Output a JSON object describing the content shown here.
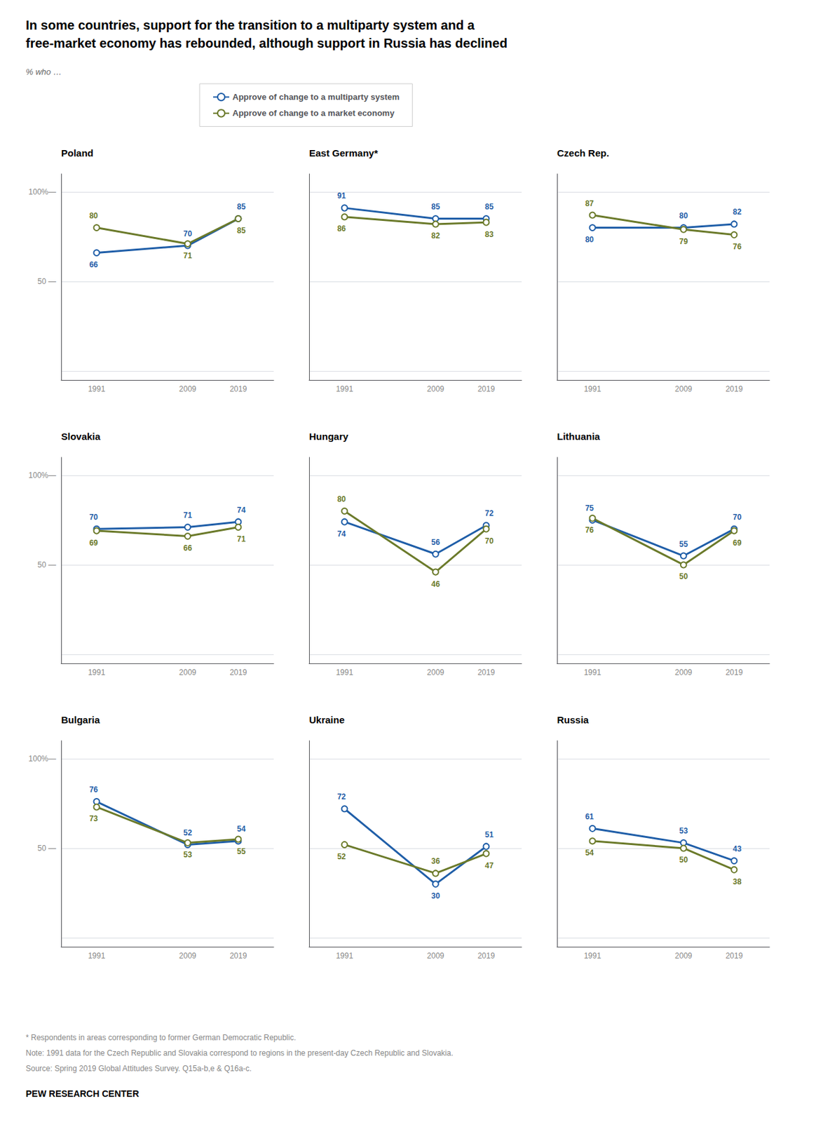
{
  "title": "In some countries, support for the transition to a multiparty system and a\nfree-market economy has rebounded, although support in Russia has declined",
  "ylabel": "% who …",
  "legend": "top",
  "annotations": [
    "* Respondents in areas corresponding to former German Democratic Republic.",
    "Note: 1991 data for the Czech Republic and Slovakia correspond to regions in the present-day Czech Republic and Slovakia.",
    "Source: Spring 2019 Global Attitudes Survey. Q15a-b,e & Q16a-c.",
    "PEW RESEARCH CENTER"
  ],
  "chart_data": [
    {
      "type": "line",
      "title": "Poland",
      "x": [
        1991,
        2009,
        2019
      ],
      "xlim": [
        1984,
        2026
      ],
      "xticks": [
        1991,
        2009,
        2019
      ],
      "ylim": [
        -5,
        110
      ],
      "yticks": [
        {
          "value": 0,
          "label": null
        },
        {
          "value": 50,
          "label": "50 —"
        },
        {
          "value": 100,
          "label": "100%—"
        }
      ],
      "grid": true,
      "data_labels": true,
      "series": [
        {
          "name": "Approve of change to a multiparty system",
          "color": "#1f5ea8",
          "values": [
            66,
            70,
            85
          ]
        },
        {
          "name": "Approve of change to a market economy",
          "color": "#6b7a2a",
          "values": [
            80,
            71,
            85
          ]
        }
      ]
    },
    {
      "type": "line",
      "title": "East Germany*",
      "x": [
        1991,
        2009,
        2019
      ],
      "xlim": [
        1984,
        2026
      ],
      "xticks": [
        1991,
        2009,
        2019
      ],
      "ylim": [
        -5,
        110
      ],
      "yticks": [
        0,
        50,
        100
      ],
      "tick_labels": "x",
      "grid": true,
      "data_labels": true,
      "series": [
        {
          "name": "Approve of change to a multiparty system",
          "color": "#1f5ea8",
          "values": [
            91,
            85,
            85
          ]
        },
        {
          "name": "Approve of change to a market economy",
          "color": "#6b7a2a",
          "values": [
            86,
            82,
            83
          ]
        }
      ]
    },
    {
      "type": "line",
      "title": "Czech Rep.",
      "x": [
        1991,
        2009,
        2019
      ],
      "xlim": [
        1984,
        2026
      ],
      "xticks": [
        1991,
        2009,
        2019
      ],
      "ylim": [
        -5,
        110
      ],
      "yticks": [
        0,
        50,
        100
      ],
      "tick_labels": "x",
      "grid": true,
      "data_labels": true,
      "series": [
        {
          "name": "Approve of change to a multiparty system",
          "color": "#1f5ea8",
          "values": [
            80,
            80,
            82
          ]
        },
        {
          "name": "Approve of change to a market economy",
          "color": "#6b7a2a",
          "values": [
            87,
            79,
            76
          ]
        }
      ]
    },
    {
      "type": "line",
      "title": "Slovakia",
      "x": [
        1991,
        2009,
        2019
      ],
      "xlim": [
        1984,
        2026
      ],
      "xticks": [
        1991,
        2009,
        2019
      ],
      "ylim": [
        -5,
        110
      ],
      "yticks": [
        {
          "value": 0,
          "label": null
        },
        {
          "value": 50,
          "label": "50 —"
        },
        {
          "value": 100,
          "label": "100%—"
        }
      ],
      "grid": true,
      "data_labels": true,
      "series": [
        {
          "name": "Approve of change to a multiparty system",
          "color": "#1f5ea8",
          "values": [
            70,
            71,
            74
          ]
        },
        {
          "name": "Approve of change to a market economy",
          "color": "#6b7a2a",
          "values": [
            69,
            66,
            71
          ]
        }
      ]
    },
    {
      "type": "line",
      "title": "Hungary",
      "x": [
        1991,
        2009,
        2019
      ],
      "xlim": [
        1984,
        2026
      ],
      "xticks": [
        1991,
        2009,
        2019
      ],
      "ylim": [
        -5,
        110
      ],
      "yticks": [
        0,
        50,
        100
      ],
      "tick_labels": "x",
      "grid": true,
      "data_labels": true,
      "series": [
        {
          "name": "Approve of change to a multiparty system",
          "color": "#1f5ea8",
          "values": [
            74,
            56,
            72
          ]
        },
        {
          "name": "Approve of change to a market economy",
          "color": "#6b7a2a",
          "values": [
            80,
            46,
            70
          ]
        }
      ]
    },
    {
      "type": "line",
      "title": "Lithuania",
      "x": [
        1991,
        2009,
        2019
      ],
      "xlim": [
        1984,
        2026
      ],
      "xticks": [
        1991,
        2009,
        2019
      ],
      "ylim": [
        -5,
        110
      ],
      "yticks": [
        0,
        50,
        100
      ],
      "tick_labels": "x",
      "grid": true,
      "data_labels": true,
      "series": [
        {
          "name": "Approve of change to a multiparty system",
          "color": "#1f5ea8",
          "values": [
            75,
            55,
            70
          ]
        },
        {
          "name": "Approve of change to a market economy",
          "color": "#6b7a2a",
          "values": [
            76,
            50,
            69
          ]
        }
      ]
    },
    {
      "type": "line",
      "title": "Bulgaria",
      "x": [
        1991,
        2009,
        2019
      ],
      "xlim": [
        1984,
        2026
      ],
      "xticks": [
        1991,
        2009,
        2019
      ],
      "ylim": [
        -5,
        110
      ],
      "yticks": [
        {
          "value": 0,
          "label": null
        },
        {
          "value": 50,
          "label": "50 —"
        },
        {
          "value": 100,
          "label": "100%—"
        }
      ],
      "grid": true,
      "data_labels": true,
      "series": [
        {
          "name": "Approve of change to a multiparty system",
          "color": "#1f5ea8",
          "values": [
            76,
            52,
            54
          ]
        },
        {
          "name": "Approve of change to a market economy",
          "color": "#6b7a2a",
          "values": [
            73,
            53,
            55
          ]
        }
      ]
    },
    {
      "type": "line",
      "title": "Ukraine",
      "x": [
        1991,
        2009,
        2019
      ],
      "xlim": [
        1984,
        2026
      ],
      "xticks": [
        1991,
        2009,
        2019
      ],
      "ylim": [
        -5,
        110
      ],
      "yticks": [
        0,
        50,
        100
      ],
      "tick_labels": "x",
      "grid": true,
      "data_labels": true,
      "series": [
        {
          "name": "Approve of change to a multiparty system",
          "color": "#1f5ea8",
          "values": [
            72,
            30,
            51
          ]
        },
        {
          "name": "Approve of change to a market economy",
          "color": "#6b7a2a",
          "values": [
            52,
            36,
            47
          ]
        }
      ]
    },
    {
      "type": "line",
      "title": "Russia",
      "x": [
        1991,
        2009,
        2019
      ],
      "xlim": [
        1984,
        2026
      ],
      "xticks": [
        1991,
        2009,
        2019
      ],
      "ylim": [
        -5,
        110
      ],
      "yticks": [
        0,
        50,
        100
      ],
      "tick_labels": "x",
      "grid": true,
      "data_labels": true,
      "series": [
        {
          "name": "Approve of change to a multiparty system",
          "color": "#1f5ea8",
          "values": [
            61,
            53,
            43
          ]
        },
        {
          "name": "Approve of change to a market economy",
          "color": "#6b7a2a",
          "values": [
            54,
            50,
            38
          ]
        }
      ]
    }
  ]
}
